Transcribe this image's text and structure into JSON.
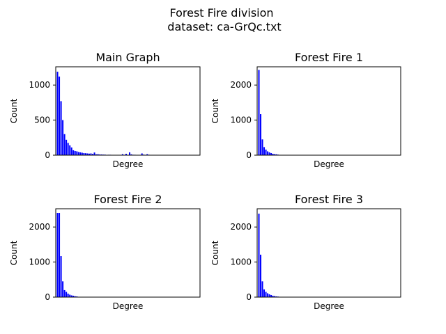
{
  "figure": {
    "title_line1": "Forest Fire division",
    "title_line2": "dataset: ca-GrQc.txt",
    "bar_color": "#0000ff"
  },
  "chart_data": [
    {
      "type": "bar",
      "title": "Main Graph",
      "xlabel": "Degree",
      "ylabel": "Count",
      "ylim": [
        0,
        1260
      ],
      "yticks": [
        0,
        500,
        1000
      ],
      "xlim": [
        0,
        82
      ],
      "x": [
        1,
        2,
        3,
        4,
        5,
        6,
        7,
        8,
        9,
        10,
        11,
        12,
        13,
        14,
        15,
        16,
        17,
        18,
        19,
        20,
        21,
        22,
        23,
        24,
        25,
        26,
        27,
        28,
        30,
        31,
        33,
        38,
        40,
        42,
        43,
        44,
        45,
        49,
        50,
        52,
        53
      ],
      "values": [
        1190,
        1120,
        770,
        500,
        300,
        220,
        175,
        140,
        110,
        70,
        60,
        55,
        45,
        40,
        35,
        30,
        28,
        25,
        22,
        25,
        18,
        38,
        12,
        15,
        10,
        10,
        8,
        8,
        6,
        6,
        5,
        15,
        20,
        40,
        12,
        6,
        6,
        25,
        8,
        15,
        6
      ]
    },
    {
      "type": "bar",
      "title": "Forest Fire 1",
      "xlabel": "Degree",
      "ylabel": "Count",
      "ylim": [
        0,
        2520
      ],
      "yticks": [
        0,
        1000,
        2000
      ],
      "xlim": [
        0,
        82
      ],
      "x": [
        1,
        2,
        3,
        4,
        5,
        6,
        7,
        8,
        9,
        10,
        11,
        12,
        13
      ],
      "values": [
        2430,
        1170,
        450,
        230,
        160,
        110,
        80,
        60,
        40,
        30,
        25,
        15,
        10
      ]
    },
    {
      "type": "bar",
      "title": "Forest Fire 2",
      "xlabel": "Degree",
      "ylabel": "Count",
      "ylim": [
        0,
        2520
      ],
      "yticks": [
        0,
        1000,
        2000
      ],
      "xlim": [
        0,
        82
      ],
      "x": [
        1,
        2,
        3,
        4,
        5,
        6,
        7,
        8,
        9,
        10,
        11,
        12,
        13
      ],
      "values": [
        2400,
        2400,
        1170,
        450,
        200,
        150,
        100,
        70,
        50,
        40,
        25,
        20,
        10
      ]
    },
    {
      "type": "bar",
      "title": "Forest Fire 3",
      "xlabel": "Degree",
      "ylabel": "Count",
      "ylim": [
        0,
        2520
      ],
      "yticks": [
        0,
        1000,
        2000
      ],
      "xlim": [
        0,
        82
      ],
      "x": [
        1,
        2,
        3,
        4,
        5,
        6,
        7,
        8,
        9,
        10,
        11,
        12,
        13,
        14
      ],
      "values": [
        2380,
        1210,
        450,
        220,
        150,
        110,
        80,
        60,
        40,
        30,
        20,
        15,
        10,
        10
      ]
    }
  ]
}
